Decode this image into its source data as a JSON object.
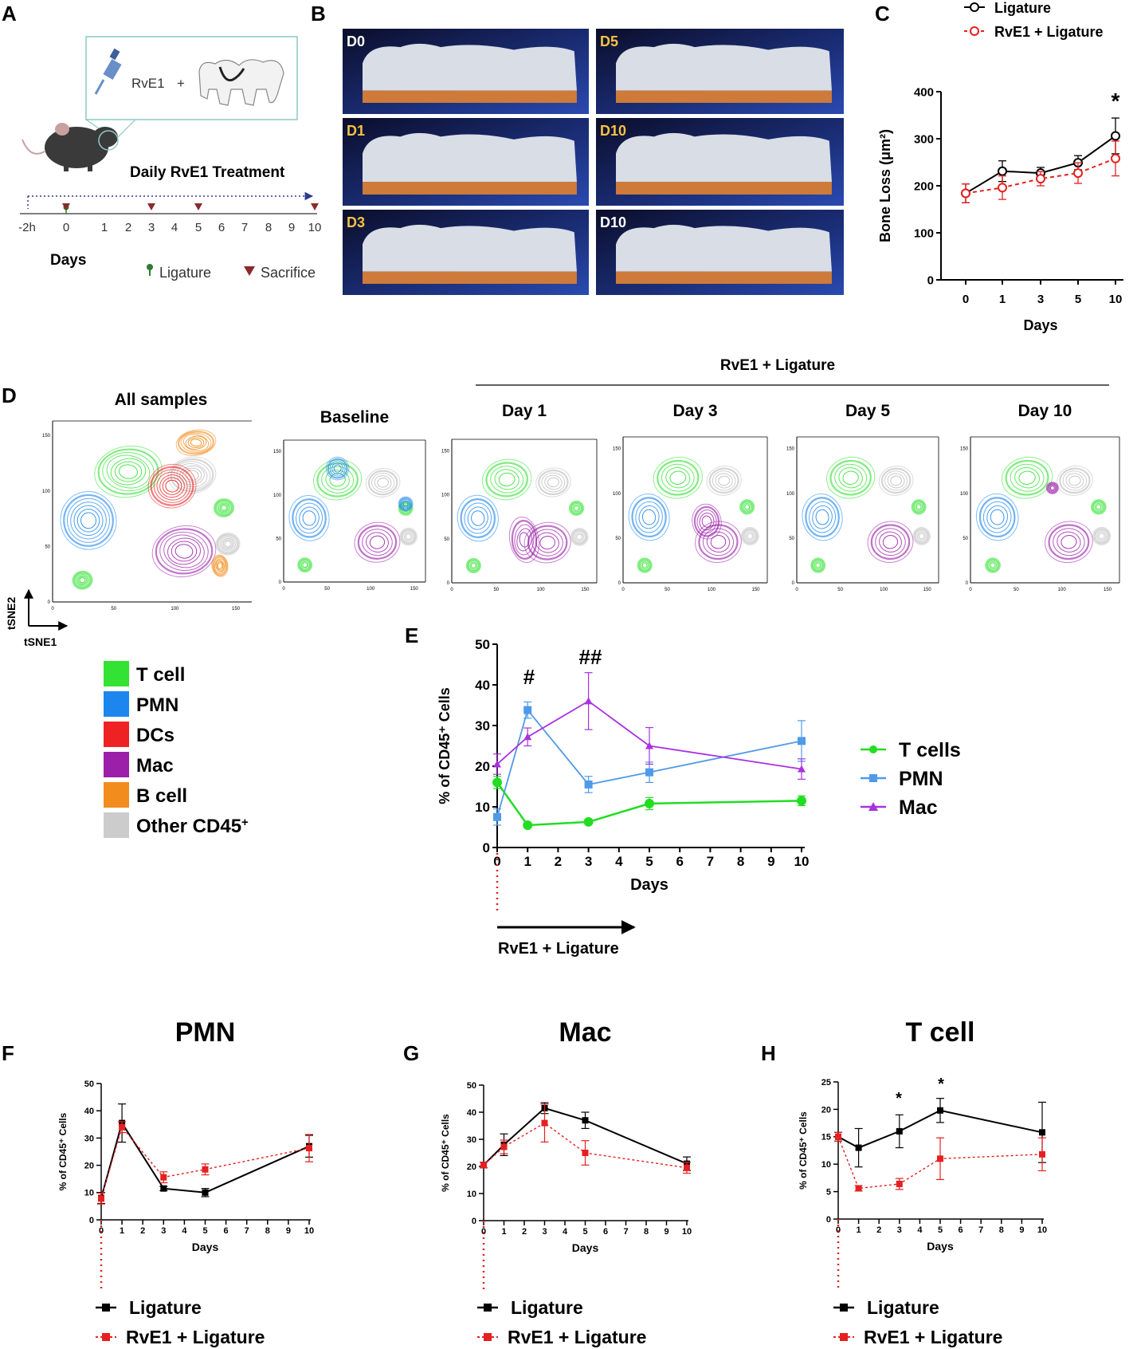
{
  "panel_labels": {
    "A": "A",
    "B": "B",
    "C": "C",
    "D": "D",
    "E": "E",
    "F": "F",
    "G": "G",
    "H": "H"
  },
  "panelA": {
    "drug": "RvE1",
    "plus": "+",
    "title": "Daily RvE1 Treatment",
    "timeline_ticks": [
      "-2h",
      "0",
      "1",
      "2",
      "3",
      "4",
      "5",
      "6",
      "7",
      "8",
      "9",
      "10"
    ],
    "days_label": "Days",
    "legend_ligature": "Ligature",
    "legend_sacrifice": "Sacrifice",
    "colors": {
      "ligature": "#2e7d32",
      "sacrifice": "#8b2a2a",
      "arrow": "#2a3b8f"
    }
  },
  "panelB": {
    "tiles": [
      "D0",
      "D5",
      "D1",
      "D10",
      "D3",
      "D10"
    ],
    "label_colors": [
      "#ffffff",
      "#f5c242",
      "#f5c242",
      "#f5c242",
      "#f5c242",
      "#ffffff"
    ]
  },
  "panelD": {
    "overall_title": "All samples",
    "group_label": "RvE1 + Ligature",
    "titles": [
      "Baseline",
      "Day 1",
      "Day 3",
      "Day 5",
      "Day 10"
    ],
    "axis_ticks": [
      "0",
      "50",
      "100",
      "150"
    ],
    "tsne1": "tSNE1",
    "tsne2": "tSNE2",
    "legend": [
      {
        "label": "T cell",
        "color": "#33e233"
      },
      {
        "label": "PMN",
        "color": "#1c86ee"
      },
      {
        "label": "DCs",
        "color": "#ee2222"
      },
      {
        "label": "Mac",
        "color": "#9b1fa8"
      },
      {
        "label": "B cell",
        "color": "#f28c1c"
      },
      {
        "label": "Other CD45",
        "sup": "+",
        "color": "#cccccc"
      }
    ]
  },
  "annotations": {
    "C_star": "*",
    "E_hash1": "#",
    "E_hash2": "##",
    "E_arrow_label": "RvE1 + Ligature",
    "H_star1": "*",
    "H_star2": "*"
  },
  "bottom_legend": {
    "ligature": "Ligature",
    "rve1": "RvE1 + Ligature"
  },
  "chart_data": [
    {
      "id": "C",
      "type": "line",
      "x": [
        0,
        1,
        3,
        5,
        10
      ],
      "xticks": [
        "0",
        "1",
        "3",
        "5",
        "10"
      ],
      "series": [
        {
          "name": "Ligature",
          "color": "#000000",
          "values": [
            184,
            231,
            227,
            249,
            306
          ],
          "err": [
            20,
            22,
            12,
            15,
            38
          ]
        },
        {
          "name": "RvE1 + Ligature",
          "color": "#e62020",
          "values": [
            184,
            196,
            215,
            227,
            258
          ],
          "err": [
            20,
            25,
            15,
            22,
            37
          ]
        }
      ],
      "xlabel": "Days",
      "ylabel": "Bone Loss (μm²)",
      "ylim": [
        0,
        400
      ],
      "yticks": [
        0,
        100,
        200,
        300,
        400
      ]
    },
    {
      "id": "E",
      "type": "line",
      "x": [
        0,
        1,
        3,
        5,
        10
      ],
      "xticks": [
        "0",
        "1",
        "2",
        "3",
        "4",
        "5",
        "6",
        "7",
        "8",
        "9",
        "10"
      ],
      "series": [
        {
          "name": "T cells",
          "color": "#22dd22",
          "values": [
            16,
            5.5,
            6.3,
            10.8,
            11.5
          ],
          "err": [
            1.5,
            0.5,
            0.5,
            1.5,
            1.2
          ]
        },
        {
          "name": "PMN",
          "color": "#4f9ae8",
          "values": [
            7.5,
            33.8,
            15.5,
            18.5,
            26.2
          ],
          "err": [
            2,
            2,
            2,
            2.5,
            5
          ]
        },
        {
          "name": "Mac",
          "color": "#a832e0",
          "values": [
            20.5,
            27.2,
            36,
            25,
            19.3
          ],
          "err": [
            2.5,
            2.2,
            7,
            4.5,
            2.5
          ]
        }
      ],
      "xlabel": "Days",
      "ylabel": "% of CD45⁺ Cells",
      "ylim": [
        0,
        50
      ],
      "yticks": [
        0,
        10,
        20,
        30,
        40,
        50
      ]
    },
    {
      "id": "F",
      "type": "line",
      "title": "PMN",
      "x": [
        0,
        1,
        3,
        5,
        10
      ],
      "xticks": [
        "0",
        "1",
        "2",
        "3",
        "4",
        "5",
        "6",
        "7",
        "8",
        "9",
        "10"
      ],
      "series": [
        {
          "name": "Ligature",
          "color": "#000000",
          "values": [
            8,
            35.5,
            11.5,
            10,
            27
          ],
          "err": [
            2,
            7,
            0.8,
            1.5,
            4
          ]
        },
        {
          "name": "RvE1 + Ligature",
          "color": "#e62020",
          "values": [
            7.8,
            34,
            15.6,
            18.5,
            26.3
          ],
          "err": [
            2,
            2,
            2,
            2,
            5
          ]
        }
      ],
      "xlabel": "Days",
      "ylabel": "% of CD45⁺ Cells",
      "ylim": [
        0,
        50
      ],
      "yticks": [
        0,
        10,
        20,
        30,
        40,
        50
      ]
    },
    {
      "id": "G",
      "type": "line",
      "title": "Mac",
      "x": [
        0,
        1,
        3,
        5,
        10
      ],
      "xticks": [
        "0",
        "1",
        "2",
        "3",
        "4",
        "5",
        "6",
        "7",
        "8",
        "9",
        "10"
      ],
      "series": [
        {
          "name": "Ligature",
          "color": "#000000",
          "values": [
            20.5,
            28,
            41.5,
            37,
            21
          ],
          "err": [
            1,
            4,
            2,
            3,
            2.5
          ]
        },
        {
          "name": "RvE1 + Ligature",
          "color": "#e62020",
          "values": [
            20.5,
            27.2,
            36,
            25,
            19.5
          ],
          "err": [
            1,
            2.5,
            7,
            4.5,
            2
          ]
        }
      ],
      "xlabel": "Days",
      "ylabel": "% of CD45⁺ Cells",
      "ylim": [
        0,
        50
      ],
      "yticks": [
        0,
        10,
        20,
        30,
        40,
        50
      ]
    },
    {
      "id": "H",
      "type": "line",
      "title": "T cell",
      "x": [
        0,
        1,
        3,
        5,
        10
      ],
      "xticks": [
        "0",
        "1",
        "2",
        "3",
        "4",
        "5",
        "6",
        "7",
        "8",
        "9",
        "10"
      ],
      "series": [
        {
          "name": "Ligature",
          "color": "#000000",
          "values": [
            15,
            13,
            16,
            19.8,
            15.8
          ],
          "err": [
            0.8,
            3.5,
            3,
            2.2,
            5.5
          ]
        },
        {
          "name": "RvE1 + Ligature",
          "color": "#e62020",
          "values": [
            15,
            5.6,
            6.4,
            11,
            11.8
          ],
          "err": [
            0.8,
            0.5,
            1,
            3.8,
            3
          ]
        }
      ],
      "xlabel": "Days",
      "ylabel": "% of CD45⁺ Cells",
      "ylim": [
        0,
        25
      ],
      "yticks": [
        0,
        5,
        10,
        15,
        20,
        25
      ]
    }
  ]
}
